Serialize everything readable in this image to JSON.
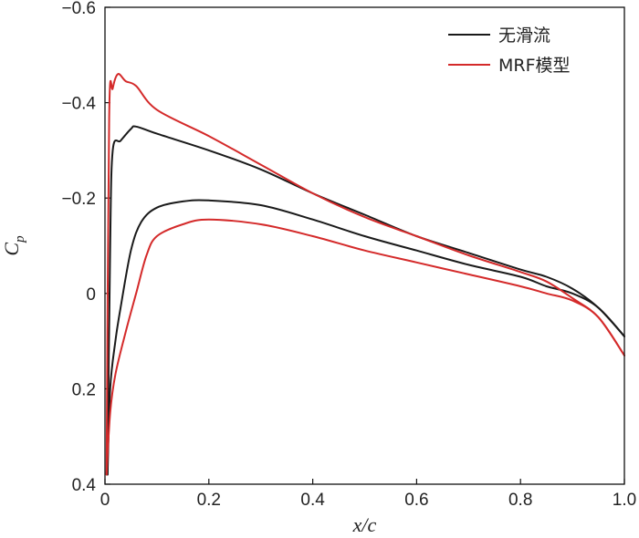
{
  "chart_data": {
    "type": "line",
    "xlabel": "x/c",
    "ylabel": {
      "base": "C",
      "sub": "p"
    },
    "xlim": [
      0,
      1.0
    ],
    "ylim": [
      -0.6,
      0.4
    ],
    "y_inverted": true,
    "xticks": [
      0,
      0.2,
      0.4,
      0.6,
      0.8,
      1.0
    ],
    "xtick_labels": [
      "0",
      "0.2",
      "0.4",
      "0.6",
      "0.8",
      "1.0"
    ],
    "yticks": [
      -0.6,
      -0.4,
      -0.2,
      0,
      0.2,
      0.4
    ],
    "ytick_labels": [
      "−0.6",
      "−0.4",
      "−0.2",
      "0",
      "0.2",
      "0.4"
    ],
    "grid": false,
    "legend_position": "top-right",
    "series": [
      {
        "name": "无滑流",
        "color": "#1a1a1a",
        "upper": [
          [
            0.005,
            0.38
          ],
          [
            0.01,
            -0.1
          ],
          [
            0.015,
            -0.3
          ],
          [
            0.03,
            -0.32
          ],
          [
            0.05,
            -0.345
          ],
          [
            0.06,
            -0.35
          ],
          [
            0.1,
            -0.335
          ],
          [
            0.2,
            -0.3
          ],
          [
            0.3,
            -0.26
          ],
          [
            0.4,
            -0.21
          ],
          [
            0.5,
            -0.165
          ],
          [
            0.6,
            -0.12
          ],
          [
            0.7,
            -0.085
          ],
          [
            0.8,
            -0.05
          ],
          [
            0.85,
            -0.035
          ],
          [
            0.9,
            -0.01
          ],
          [
            0.95,
            0.03
          ],
          [
            1.0,
            0.09
          ]
        ],
        "lower": [
          [
            0.005,
            0.38
          ],
          [
            0.01,
            0.2
          ],
          [
            0.02,
            0.1
          ],
          [
            0.03,
            0.03
          ],
          [
            0.05,
            -0.09
          ],
          [
            0.07,
            -0.15
          ],
          [
            0.1,
            -0.18
          ],
          [
            0.15,
            -0.193
          ],
          [
            0.2,
            -0.195
          ],
          [
            0.3,
            -0.185
          ],
          [
            0.4,
            -0.155
          ],
          [
            0.5,
            -0.12
          ],
          [
            0.6,
            -0.09
          ],
          [
            0.7,
            -0.06
          ],
          [
            0.8,
            -0.035
          ],
          [
            0.85,
            -0.015
          ],
          [
            0.9,
            0.0
          ],
          [
            0.95,
            0.03
          ],
          [
            1.0,
            0.09
          ]
        ]
      },
      {
        "name": "MRF模型",
        "color": "#d42a2a",
        "upper": [
          [
            0.003,
            0.38
          ],
          [
            0.008,
            -0.37
          ],
          [
            0.015,
            -0.43
          ],
          [
            0.025,
            -0.46
          ],
          [
            0.04,
            -0.445
          ],
          [
            0.06,
            -0.435
          ],
          [
            0.1,
            -0.385
          ],
          [
            0.2,
            -0.33
          ],
          [
            0.3,
            -0.27
          ],
          [
            0.4,
            -0.21
          ],
          [
            0.5,
            -0.16
          ],
          [
            0.6,
            -0.12
          ],
          [
            0.7,
            -0.08
          ],
          [
            0.8,
            -0.045
          ],
          [
            0.85,
            -0.025
          ],
          [
            0.9,
            0.01
          ],
          [
            0.95,
            0.05
          ],
          [
            1.0,
            0.13
          ]
        ],
        "lower": [
          [
            0.003,
            0.38
          ],
          [
            0.01,
            0.25
          ],
          [
            0.02,
            0.17
          ],
          [
            0.04,
            0.08
          ],
          [
            0.06,
            0.0
          ],
          [
            0.08,
            -0.08
          ],
          [
            0.1,
            -0.12
          ],
          [
            0.15,
            -0.145
          ],
          [
            0.2,
            -0.155
          ],
          [
            0.3,
            -0.145
          ],
          [
            0.4,
            -0.12
          ],
          [
            0.5,
            -0.09
          ],
          [
            0.6,
            -0.065
          ],
          [
            0.7,
            -0.04
          ],
          [
            0.8,
            -0.015
          ],
          [
            0.85,
            0.0
          ],
          [
            0.9,
            0.015
          ],
          [
            0.95,
            0.05
          ],
          [
            1.0,
            0.13
          ]
        ]
      }
    ]
  }
}
